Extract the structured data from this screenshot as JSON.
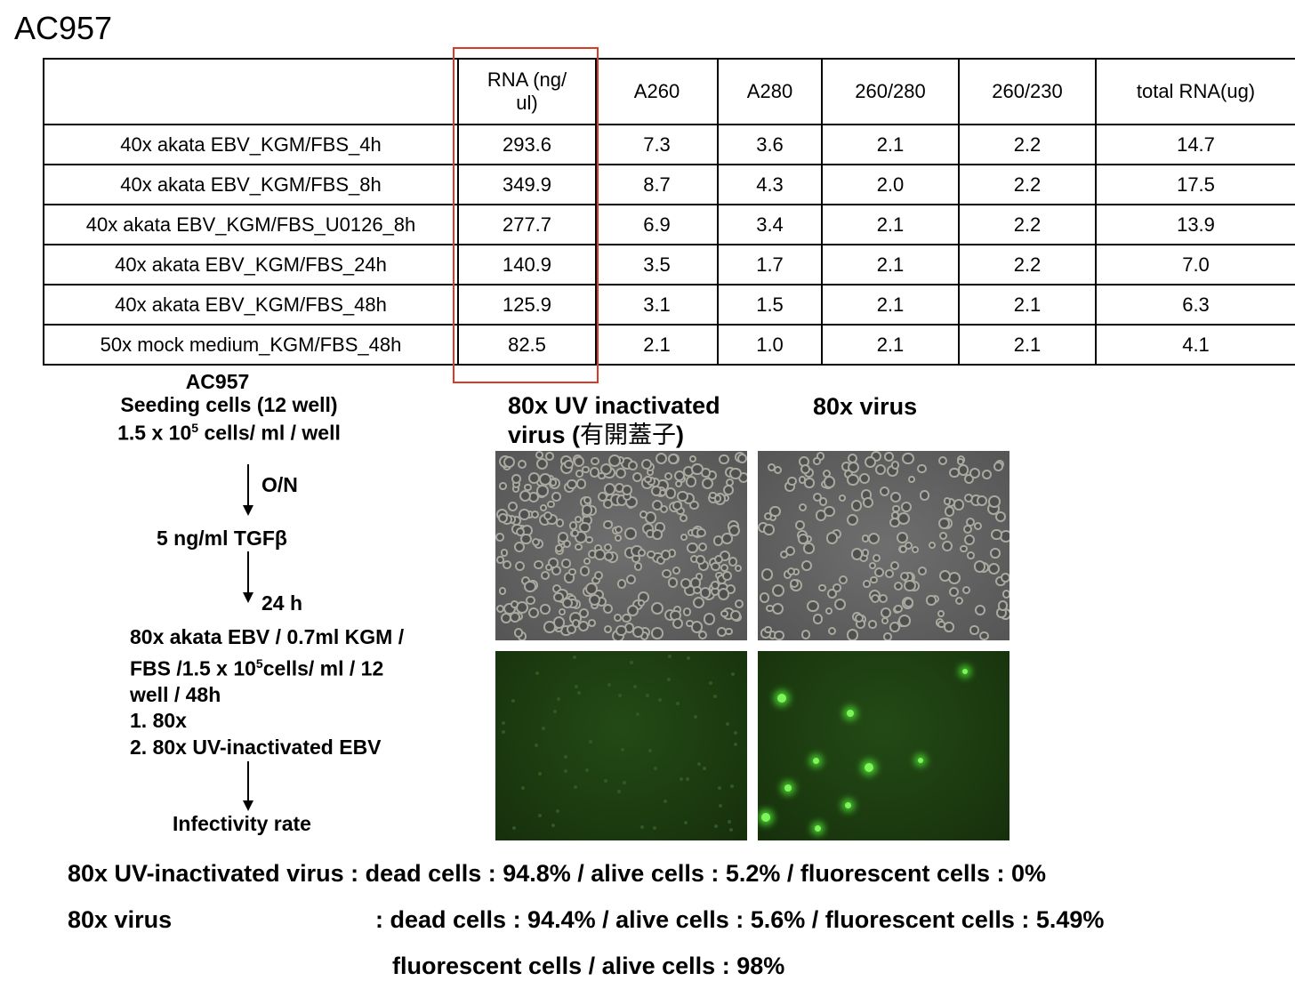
{
  "title": "AC957",
  "table": {
    "headers": [
      "",
      "RNA (ng/\nul)",
      "A260",
      "A280",
      "260/280",
      "260/230",
      "total RNA(ug)"
    ],
    "rows": [
      [
        "40x akata EBV_KGM/FBS_4h",
        "293.6",
        "7.3",
        "3.6",
        "2.1",
        "2.2",
        "14.7"
      ],
      [
        "40x akata EBV_KGM/FBS_8h",
        "349.9",
        "8.7",
        "4.3",
        "2.0",
        "2.2",
        "17.5"
      ],
      [
        "40x akata EBV_KGM/FBS_U0126_8h",
        "277.7",
        "6.9",
        "3.4",
        "2.1",
        "2.2",
        "13.9"
      ],
      [
        "40x akata EBV_KGM/FBS_24h",
        "140.9",
        "3.5",
        "1.7",
        "2.1",
        "2.2",
        "7.0"
      ],
      [
        "40x akata EBV_KGM/FBS_48h",
        "125.9",
        "3.1",
        "1.5",
        "2.1",
        "2.1",
        "6.3"
      ],
      [
        "50x mock medium_KGM/FBS_48h",
        "82.5",
        "2.1",
        "1.0",
        "2.1",
        "2.1",
        "4.1"
      ]
    ],
    "highlight_color": "#d83a26"
  },
  "protocol": {
    "header": "AC957",
    "seeding_line1": "Seeding cells (12 well)",
    "seeding_line2_pre": "1.5 x 10",
    "seeding_line2_sup": "5",
    "seeding_line2_post": " cells/ ml / well",
    "step1_label": "O/N",
    "treatment": "5 ng/ml TGFβ",
    "step2_label": "24 h",
    "infection_line1": "80x akata EBV / 0.7ml KGM /",
    "infection_line2_pre": "FBS /1.5 x 10",
    "infection_line2_sup": "5",
    "infection_line2_post": "cells/ ml / 12",
    "infection_line3": "well / 48h",
    "option1": "1. 80x",
    "option2": "2. 80x UV-inactivated EBV",
    "readout": "Infectivity rate"
  },
  "images": {
    "uv_label_line1": "80x UV inactivated",
    "uv_label_line2_pre": "virus (",
    "uv_label_line2_cjk": "有開蓋子",
    "uv_label_line2_post": ")",
    "virus_label": "80x virus"
  },
  "results": {
    "uv_line": "80x UV-inactivated virus : dead cells : 94.8% / alive cells : 5.2% / fluorescent cells : 0%",
    "virus_label": "80x virus",
    "virus_line": ": dead cells : 94.4% / alive cells : 5.6% / fluorescent cells : 5.49%",
    "ratio_line": "fluorescent cells / alive cells : 98%"
  }
}
